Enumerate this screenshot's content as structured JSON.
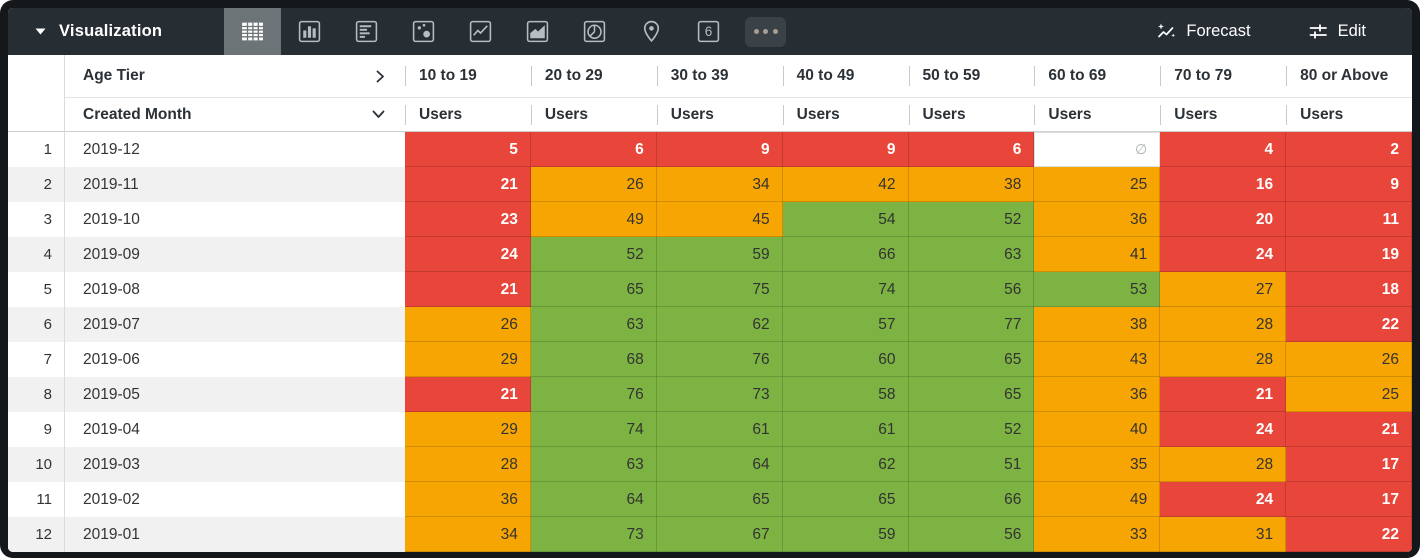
{
  "toolbar": {
    "title": "Visualization",
    "viz_types": [
      {
        "name": "table",
        "selected": true
      },
      {
        "name": "column-chart",
        "selected": false
      },
      {
        "name": "bar-chart",
        "selected": false
      },
      {
        "name": "scatterplot",
        "selected": false
      },
      {
        "name": "line-chart",
        "selected": false
      },
      {
        "name": "area-chart",
        "selected": false
      },
      {
        "name": "pie-chart",
        "selected": false
      },
      {
        "name": "map",
        "selected": false
      },
      {
        "name": "single-value",
        "selected": false
      },
      {
        "name": "more",
        "selected": false
      }
    ],
    "single_value_glyph": "6",
    "forecast_label": "Forecast",
    "edit_label": "Edit"
  },
  "colors": {
    "toolbar_bg": "#262d33",
    "selected_tile_bg": "#6d7478",
    "red": "#e8463a",
    "orange": "#f7a502",
    "green": "#7cb342",
    "row_stripe": "#f1f1f2"
  },
  "table": {
    "pivot_label": "Age Tier",
    "row_dimension_label": "Created Month",
    "measure_label": "Users",
    "null_symbol": "∅",
    "column_headers": [
      "10 to 19",
      "20 to 29",
      "30 to 39",
      "40 to 49",
      "50 to 59",
      "60 to 69",
      "70 to 79",
      "80 or Above"
    ],
    "rows": [
      {
        "num": 1,
        "month": "2019-12",
        "values": [
          5,
          6,
          9,
          9,
          6,
          null,
          4,
          2
        ],
        "colors": [
          "red",
          "red",
          "red",
          "red",
          "red",
          "null",
          "red",
          "red"
        ]
      },
      {
        "num": 2,
        "month": "2019-11",
        "values": [
          21,
          26,
          34,
          42,
          38,
          25,
          16,
          9
        ],
        "colors": [
          "red",
          "orange",
          "orange",
          "orange",
          "orange",
          "orange",
          "red",
          "red"
        ]
      },
      {
        "num": 3,
        "month": "2019-10",
        "values": [
          23,
          49,
          45,
          54,
          52,
          36,
          20,
          11
        ],
        "colors": [
          "red",
          "orange",
          "orange",
          "green",
          "green",
          "orange",
          "red",
          "red"
        ]
      },
      {
        "num": 4,
        "month": "2019-09",
        "values": [
          24,
          52,
          59,
          66,
          63,
          41,
          24,
          19
        ],
        "colors": [
          "red",
          "green",
          "green",
          "green",
          "green",
          "orange",
          "red",
          "red"
        ]
      },
      {
        "num": 5,
        "month": "2019-08",
        "values": [
          21,
          65,
          75,
          74,
          56,
          53,
          27,
          18
        ],
        "colors": [
          "red",
          "green",
          "green",
          "green",
          "green",
          "green",
          "orange",
          "red"
        ]
      },
      {
        "num": 6,
        "month": "2019-07",
        "values": [
          26,
          63,
          62,
          57,
          77,
          38,
          28,
          22
        ],
        "colors": [
          "orange",
          "green",
          "green",
          "green",
          "green",
          "orange",
          "orange",
          "red"
        ]
      },
      {
        "num": 7,
        "month": "2019-06",
        "values": [
          29,
          68,
          76,
          60,
          65,
          43,
          28,
          26
        ],
        "colors": [
          "orange",
          "green",
          "green",
          "green",
          "green",
          "orange",
          "orange",
          "orange"
        ]
      },
      {
        "num": 8,
        "month": "2019-05",
        "values": [
          21,
          76,
          73,
          58,
          65,
          36,
          21,
          25
        ],
        "colors": [
          "red",
          "green",
          "green",
          "green",
          "green",
          "orange",
          "red",
          "orange"
        ]
      },
      {
        "num": 9,
        "month": "2019-04",
        "values": [
          29,
          74,
          61,
          61,
          52,
          40,
          24,
          21
        ],
        "colors": [
          "orange",
          "green",
          "green",
          "green",
          "green",
          "orange",
          "red",
          "red"
        ]
      },
      {
        "num": 10,
        "month": "2019-03",
        "values": [
          28,
          63,
          64,
          62,
          51,
          35,
          28,
          17
        ],
        "colors": [
          "orange",
          "green",
          "green",
          "green",
          "green",
          "orange",
          "orange",
          "red"
        ]
      },
      {
        "num": 11,
        "month": "2019-02",
        "values": [
          36,
          64,
          65,
          65,
          66,
          49,
          24,
          17
        ],
        "colors": [
          "orange",
          "green",
          "green",
          "green",
          "green",
          "orange",
          "red",
          "red"
        ]
      },
      {
        "num": 12,
        "month": "2019-01",
        "values": [
          34,
          73,
          67,
          59,
          56,
          33,
          31,
          22
        ],
        "colors": [
          "orange",
          "green",
          "green",
          "green",
          "green",
          "orange",
          "orange",
          "red"
        ]
      }
    ]
  }
}
